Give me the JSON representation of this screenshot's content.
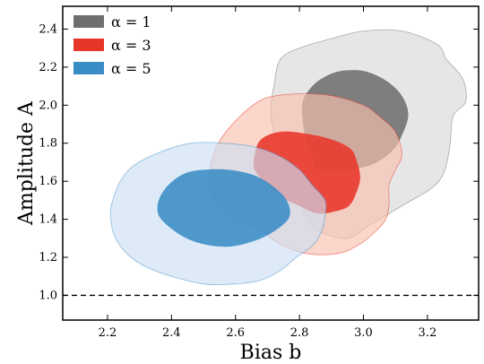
{
  "chart_data": {
    "type": "contour",
    "xlabel": "Bias b",
    "ylabel": "Amplitude A",
    "xlim": [
      2.06,
      3.36
    ],
    "ylim": [
      0.87,
      2.52
    ],
    "xticks": [
      "2.2",
      "2.4",
      "2.6",
      "2.8",
      "3.0",
      "3.2"
    ],
    "yticks": [
      "1.0",
      "1.2",
      "1.4",
      "1.6",
      "1.8",
      "2.0",
      "2.2",
      "2.4"
    ],
    "reference_line": {
      "y": 1.0,
      "style": "dashed",
      "color": "#000000"
    },
    "legend": {
      "placement": "top-left"
    },
    "series": [
      {
        "name": "α = 1",
        "color": "#6f6f6f",
        "outer_color": "#d9d9d9",
        "outer": [
          [
            2.86,
            1.34
          ],
          [
            2.95,
            1.3
          ],
          [
            3.02,
            1.37
          ],
          [
            3.13,
            1.48
          ],
          [
            3.21,
            1.56
          ],
          [
            3.25,
            1.64
          ],
          [
            3.27,
            1.78
          ],
          [
            3.28,
            1.94
          ],
          [
            3.32,
            2.02
          ],
          [
            3.31,
            2.14
          ],
          [
            3.26,
            2.24
          ],
          [
            3.23,
            2.32
          ],
          [
            3.12,
            2.39
          ],
          [
            3.0,
            2.39
          ],
          [
            2.9,
            2.35
          ],
          [
            2.8,
            2.3
          ],
          [
            2.74,
            2.24
          ],
          [
            2.72,
            2.1
          ],
          [
            2.71,
            1.98
          ],
          [
            2.72,
            1.86
          ],
          [
            2.75,
            1.72
          ],
          [
            2.78,
            1.62
          ],
          [
            2.8,
            1.52
          ],
          [
            2.82,
            1.42
          ]
        ],
        "inner": [
          [
            2.86,
            1.66
          ],
          [
            2.95,
            1.66
          ],
          [
            3.03,
            1.69
          ],
          [
            3.09,
            1.76
          ],
          [
            3.12,
            1.84
          ],
          [
            3.14,
            1.95
          ],
          [
            3.12,
            2.05
          ],
          [
            3.07,
            2.13
          ],
          [
            3.0,
            2.18
          ],
          [
            2.93,
            2.18
          ],
          [
            2.88,
            2.15
          ],
          [
            2.84,
            2.1
          ],
          [
            2.81,
            2.02
          ],
          [
            2.81,
            1.92
          ],
          [
            2.82,
            1.82
          ],
          [
            2.84,
            1.72
          ]
        ]
      },
      {
        "name": "α = 3",
        "color": "#e8352a",
        "outer_color": "#f9c0ad",
        "outer": [
          [
            2.67,
            1.35
          ],
          [
            2.74,
            1.27
          ],
          [
            2.82,
            1.22
          ],
          [
            2.92,
            1.22
          ],
          [
            2.99,
            1.27
          ],
          [
            3.04,
            1.34
          ],
          [
            3.07,
            1.4
          ],
          [
            3.08,
            1.48
          ],
          [
            3.08,
            1.58
          ],
          [
            3.1,
            1.66
          ],
          [
            3.12,
            1.74
          ],
          [
            3.1,
            1.86
          ],
          [
            3.05,
            1.94
          ],
          [
            3.0,
            2.0
          ],
          [
            2.9,
            2.05
          ],
          [
            2.8,
            2.06
          ],
          [
            2.7,
            2.04
          ],
          [
            2.64,
            1.98
          ],
          [
            2.58,
            1.88
          ],
          [
            2.54,
            1.78
          ],
          [
            2.52,
            1.66
          ],
          [
            2.52,
            1.56
          ],
          [
            2.55,
            1.46
          ],
          [
            2.6,
            1.38
          ]
        ],
        "inner": [
          [
            2.86,
            1.43
          ],
          [
            2.93,
            1.45
          ],
          [
            2.96,
            1.48
          ],
          [
            2.98,
            1.55
          ],
          [
            2.99,
            1.62
          ],
          [
            2.98,
            1.7
          ],
          [
            2.96,
            1.77
          ],
          [
            2.9,
            1.82
          ],
          [
            2.82,
            1.85
          ],
          [
            2.74,
            1.86
          ],
          [
            2.68,
            1.82
          ],
          [
            2.66,
            1.74
          ],
          [
            2.66,
            1.66
          ],
          [
            2.7,
            1.58
          ],
          [
            2.74,
            1.52
          ],
          [
            2.8,
            1.47
          ]
        ]
      },
      {
        "name": "α = 5",
        "color": "#3a8cc6",
        "outer_color": "#cddff2",
        "outer": [
          [
            2.4,
            1.1
          ],
          [
            2.5,
            1.06
          ],
          [
            2.6,
            1.06
          ],
          [
            2.68,
            1.08
          ],
          [
            2.74,
            1.13
          ],
          [
            2.79,
            1.2
          ],
          [
            2.84,
            1.26
          ],
          [
            2.87,
            1.34
          ],
          [
            2.88,
            1.42
          ],
          [
            2.88,
            1.5
          ],
          [
            2.84,
            1.58
          ],
          [
            2.8,
            1.66
          ],
          [
            2.74,
            1.73
          ],
          [
            2.66,
            1.78
          ],
          [
            2.56,
            1.8
          ],
          [
            2.46,
            1.8
          ],
          [
            2.36,
            1.75
          ],
          [
            2.28,
            1.68
          ],
          [
            2.24,
            1.6
          ],
          [
            2.22,
            1.52
          ],
          [
            2.21,
            1.44
          ],
          [
            2.22,
            1.32
          ],
          [
            2.26,
            1.22
          ],
          [
            2.32,
            1.15
          ]
        ],
        "inner": [
          [
            2.46,
            1.29
          ],
          [
            2.53,
            1.26
          ],
          [
            2.6,
            1.26
          ],
          [
            2.68,
            1.3
          ],
          [
            2.74,
            1.36
          ],
          [
            2.77,
            1.42
          ],
          [
            2.76,
            1.5
          ],
          [
            2.72,
            1.57
          ],
          [
            2.66,
            1.63
          ],
          [
            2.58,
            1.66
          ],
          [
            2.5,
            1.66
          ],
          [
            2.44,
            1.64
          ],
          [
            2.39,
            1.58
          ],
          [
            2.36,
            1.5
          ],
          [
            2.36,
            1.42
          ],
          [
            2.4,
            1.35
          ]
        ]
      }
    ]
  }
}
